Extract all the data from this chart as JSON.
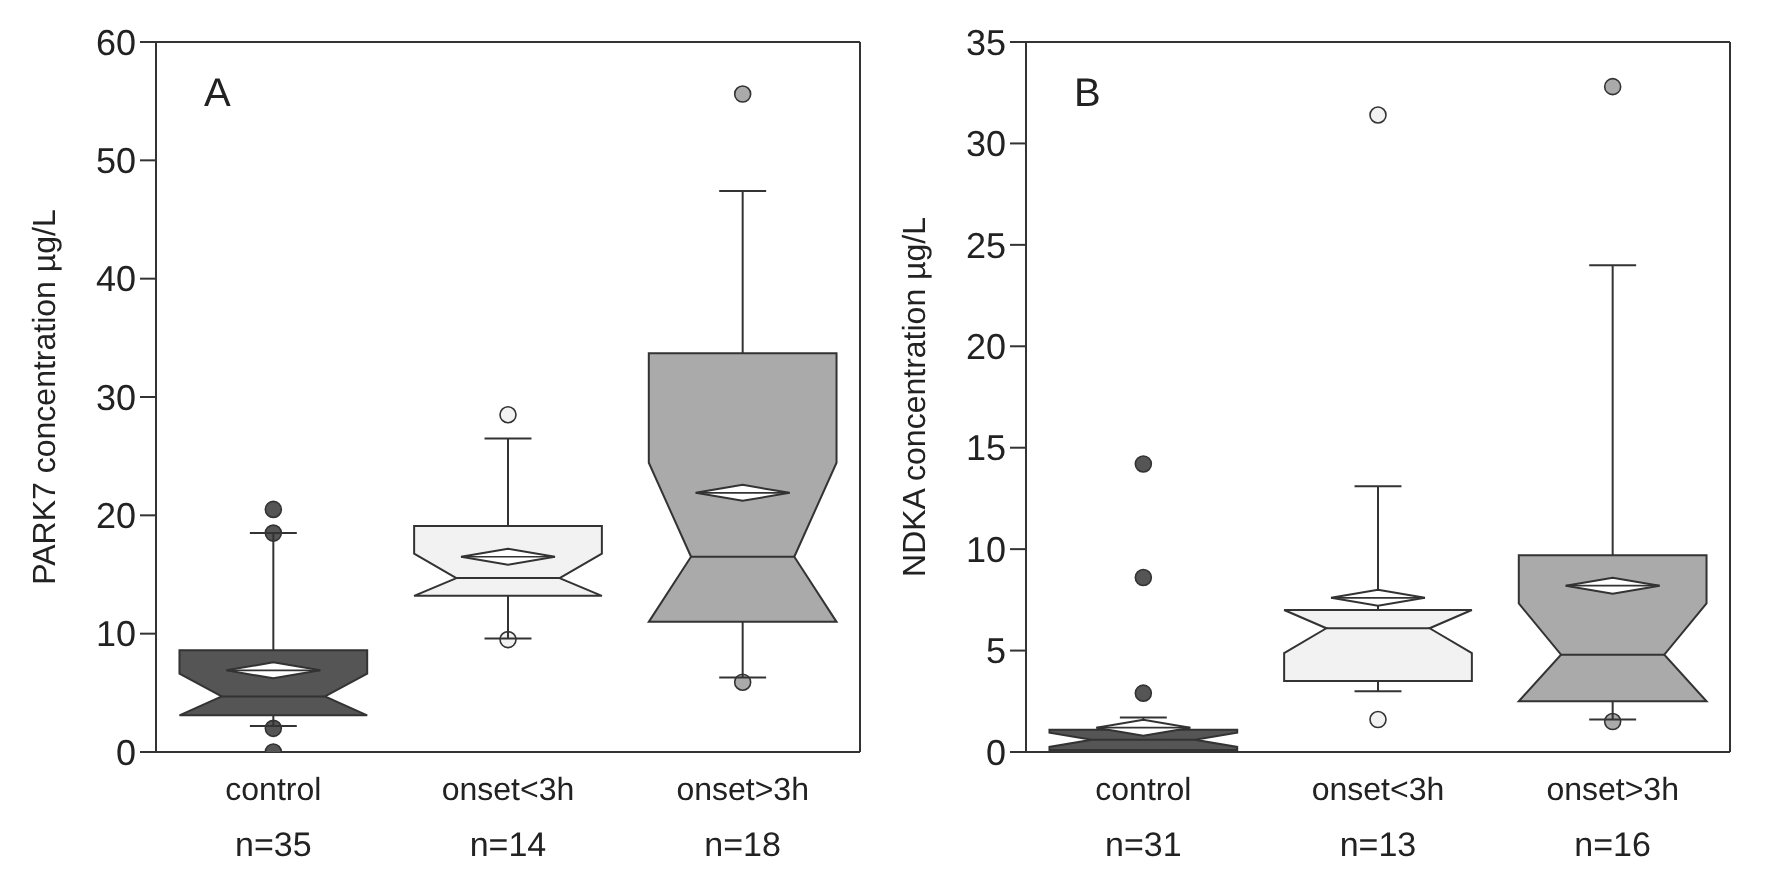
{
  "chart_data": [
    {
      "type": "box",
      "title": "A",
      "ylabel": "PARK7 concentration µg/L",
      "categories": [
        "control",
        "onset<3h",
        "onset>3h"
      ],
      "annotations": [
        "n=35",
        "n=14",
        "n=18"
      ],
      "ylim": [
        0,
        60
      ],
      "yticks": [
        0,
        10,
        20,
        30,
        40,
        50,
        60
      ],
      "series": [
        {
          "colors": [
            "#555555",
            "#f2f2f2",
            "#aaaaaa"
          ],
          "boxes": [
            {
              "low": 2.2,
              "q1": 3.1,
              "median": 4.7,
              "q3": 8.6,
              "high": 18.5,
              "mean": 6.9,
              "outliers": [
                0,
                2,
                18.5,
                20.5
              ]
            },
            {
              "low": 9.6,
              "q1": 13.2,
              "median": 14.7,
              "q3": 19.1,
              "high": 26.5,
              "mean": 16.5,
              "outliers": [
                9.5,
                28.5
              ]
            },
            {
              "low": 6.3,
              "q1": 11,
              "median": 16.5,
              "q3": 33.7,
              "high": 47.4,
              "mean": 21.9,
              "outliers": [
                5.9,
                55.6
              ]
            }
          ]
        }
      ]
    },
    {
      "type": "box",
      "title": "B",
      "ylabel": "NDKA concentration µg/L",
      "categories": [
        "control",
        "onset<3h",
        "onset>3h"
      ],
      "annotations": [
        "n=31",
        "n=13",
        "n=16"
      ],
      "ylim": [
        0,
        35
      ],
      "yticks": [
        0,
        5,
        10,
        15,
        20,
        25,
        30,
        35
      ],
      "series": [
        {
          "colors": [
            "#555555",
            "#f2f2f2",
            "#aaaaaa"
          ],
          "boxes": [
            {
              "low": 0,
              "q1": 0.1,
              "median": 0.6,
              "q3": 1.1,
              "high": 1.7,
              "mean": 1.2,
              "outliers": [
                2.9,
                8.6,
                14.2
              ]
            },
            {
              "low": 3,
              "q1": 3.5,
              "median": 6.1,
              "q3": 7,
              "high": 13.1,
              "mean": 7.6,
              "outliers": [
                1.6,
                31.4
              ]
            },
            {
              "low": 1.6,
              "q1": 2.5,
              "median": 4.8,
              "q3": 9.7,
              "high": 24,
              "mean": 8.2,
              "outliers": [
                1.5,
                32.8
              ]
            }
          ]
        }
      ]
    }
  ]
}
